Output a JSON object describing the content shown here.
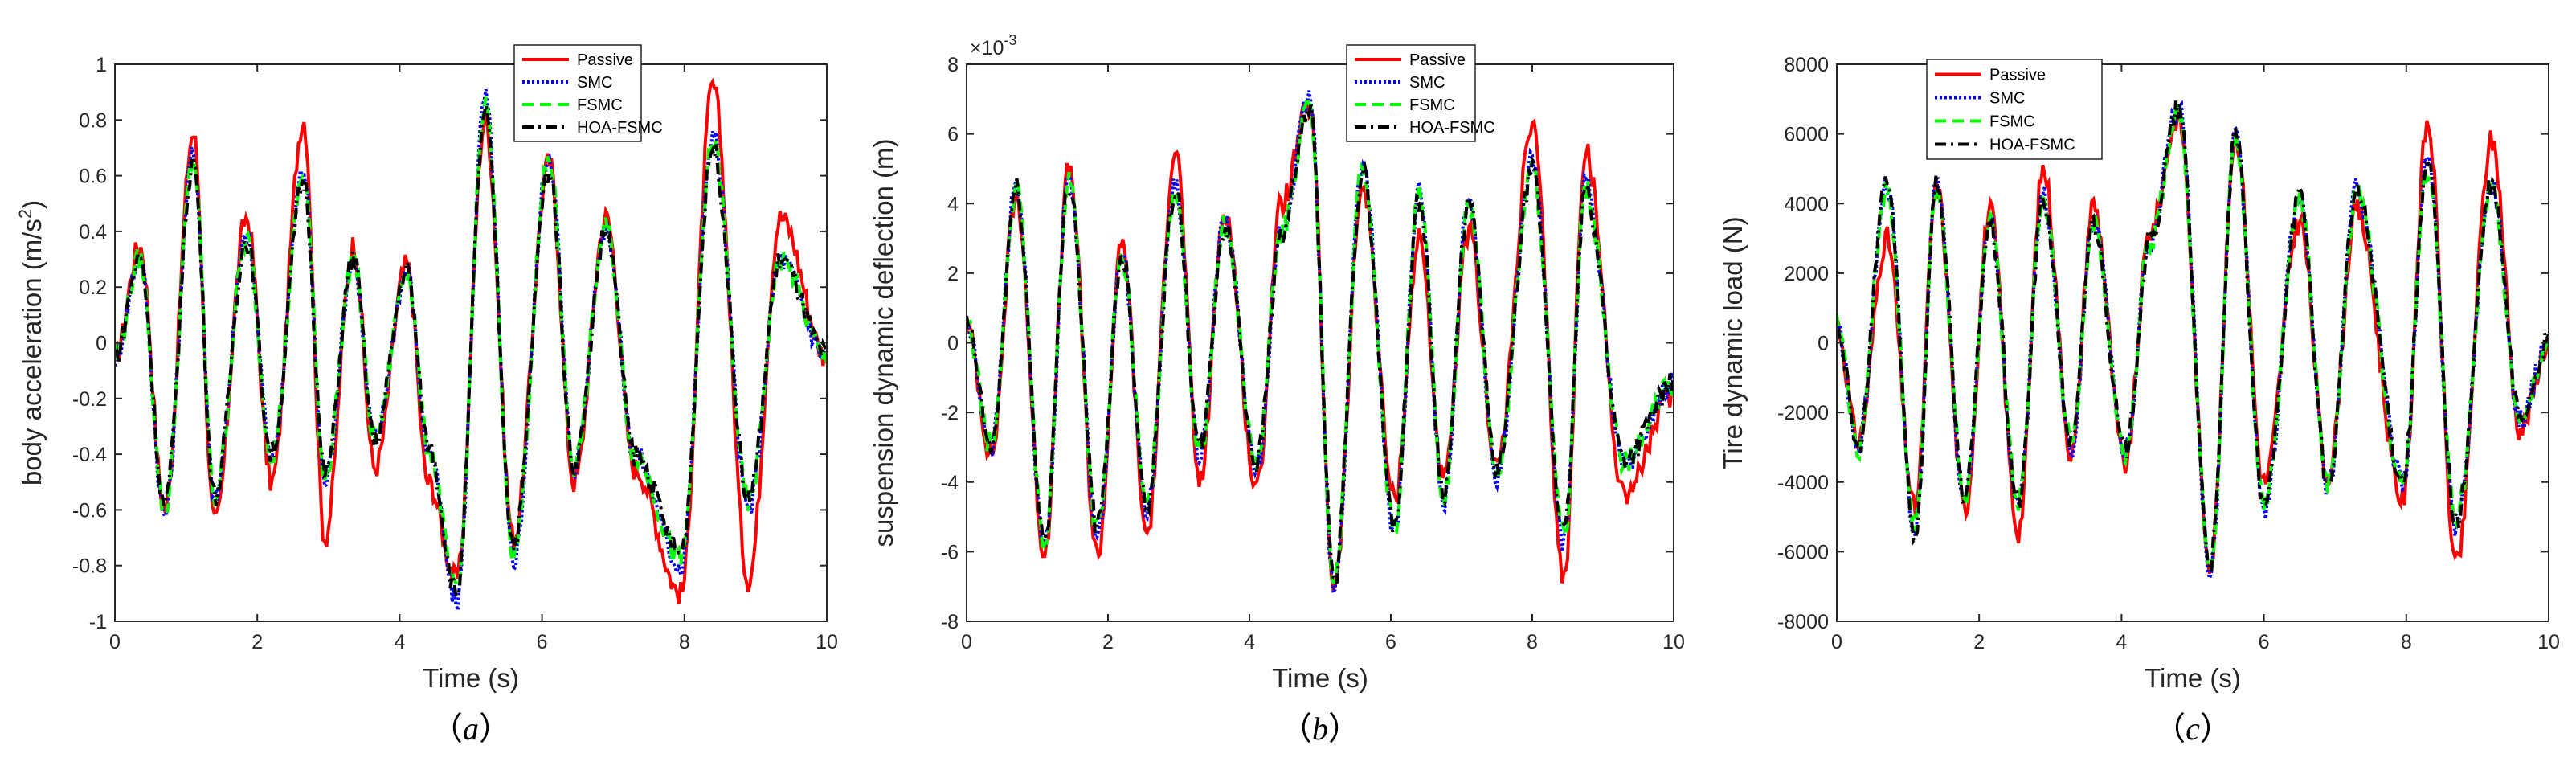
{
  "figure": {
    "legend_labels": [
      "Passive",
      "SMC",
      "FSMC",
      "HOA-FSMC"
    ],
    "colors": {
      "Passive": "#ff0000",
      "SMC": "#0000ff",
      "FSMC": "#00ff00",
      "HOA-FSMC": "#000000"
    }
  },
  "chart_data": [
    {
      "type": "line",
      "panel_label": "a",
      "xlabel": "Time (s)",
      "ylabel": "body acceleration (m/s",
      "ylabel_superscript": "2",
      "ylabel_suffix": ")",
      "xlim": [
        0,
        10
      ],
      "ylim": [
        -1,
        1
      ],
      "xticks": [
        0,
        2,
        4,
        6,
        8,
        10
      ],
      "yticks": [
        -1,
        -0.8,
        -0.6,
        -0.4,
        -0.2,
        0,
        0.2,
        0.4,
        0.6,
        0.8,
        1
      ],
      "ytick_labels": [
        "-1",
        "-0.8",
        "-0.6",
        "-0.4",
        "-0.2",
        "0",
        "0.2",
        "0.4",
        "0.6",
        "0.8",
        "1"
      ],
      "exponent_label": "",
      "legend_position": "top-right",
      "grid": false,
      "series": [
        {
          "name": "Passive",
          "x": [
            0,
            0.35,
            0.7,
            1.1,
            1.4,
            1.85,
            2.2,
            2.65,
            2.95,
            3.35,
            3.65,
            4.1,
            4.4,
            4.8,
            5.2,
            5.6,
            6.1,
            6.45,
            6.9,
            7.3,
            7.95,
            8.4,
            8.9,
            9.35,
            10
          ],
          "y": [
            -0.05,
            0.35,
            -0.6,
            0.75,
            -0.65,
            0.45,
            -0.5,
            0.8,
            -0.7,
            0.35,
            -0.45,
            0.28,
            -0.5,
            -0.85,
            0.8,
            -0.7,
            0.65,
            -0.5,
            0.45,
            -0.45,
            -0.9,
            0.92,
            -0.85,
            0.45,
            -0.05
          ]
        },
        {
          "name": "SMC",
          "x": [
            0,
            0.35,
            0.7,
            1.1,
            1.4,
            1.85,
            2.2,
            2.65,
            2.95,
            3.35,
            3.65,
            4.1,
            4.4,
            4.8,
            5.2,
            5.6,
            6.1,
            6.45,
            6.9,
            7.3,
            7.95,
            8.4,
            8.9,
            9.35,
            10
          ],
          "y": [
            -0.05,
            0.3,
            -0.62,
            0.68,
            -0.55,
            0.38,
            -0.4,
            0.62,
            -0.5,
            0.3,
            -0.35,
            0.26,
            -0.38,
            -0.93,
            0.88,
            -0.78,
            0.68,
            -0.45,
            0.42,
            -0.4,
            -0.8,
            0.75,
            -0.6,
            0.3,
            -0.05
          ]
        },
        {
          "name": "FSMC",
          "x": [
            0,
            0.35,
            0.7,
            1.1,
            1.4,
            1.85,
            2.2,
            2.65,
            2.95,
            3.35,
            3.65,
            4.1,
            4.4,
            4.8,
            5.2,
            5.6,
            6.1,
            6.45,
            6.9,
            7.3,
            7.95,
            8.4,
            8.9,
            9.35,
            10
          ],
          "y": [
            -0.05,
            0.3,
            -0.6,
            0.66,
            -0.55,
            0.37,
            -0.4,
            0.6,
            -0.48,
            0.3,
            -0.35,
            0.26,
            -0.37,
            -0.9,
            0.85,
            -0.75,
            0.66,
            -0.44,
            0.41,
            -0.4,
            -0.78,
            0.72,
            -0.58,
            0.3,
            -0.05
          ]
        },
        {
          "name": "HOA-FSMC",
          "x": [
            0,
            0.35,
            0.7,
            1.1,
            1.4,
            1.85,
            2.2,
            2.65,
            2.95,
            3.35,
            3.65,
            4.1,
            4.4,
            4.8,
            5.2,
            5.6,
            6.1,
            6.45,
            6.9,
            7.3,
            7.95,
            8.4,
            8.9,
            9.35,
            10
          ],
          "y": [
            -0.05,
            0.3,
            -0.58,
            0.65,
            -0.55,
            0.37,
            -0.4,
            0.58,
            -0.47,
            0.3,
            -0.35,
            0.26,
            -0.36,
            -0.9,
            0.82,
            -0.72,
            0.62,
            -0.44,
            0.4,
            -0.4,
            -0.75,
            0.7,
            -0.56,
            0.3,
            -0.05
          ]
        }
      ]
    },
    {
      "type": "line",
      "panel_label": "b",
      "xlabel": "Time (s)",
      "ylabel": "suspension dynamic deflection (m)",
      "ylabel_superscript": "",
      "ylabel_suffix": "",
      "xlim": [
        0,
        10
      ],
      "ylim": [
        -8,
        8
      ],
      "xticks": [
        0,
        2,
        4,
        6,
        8,
        10
      ],
      "yticks": [
        -8,
        -6,
        -4,
        -2,
        0,
        2,
        4,
        6,
        8
      ],
      "ytick_labels": [
        "-8",
        "-6",
        "-4",
        "-2",
        "0",
        "2",
        "4",
        "6",
        "8"
      ],
      "exponent_label": "×10",
      "exponent_power": "-3",
      "legend_position": "top-right",
      "grid": false,
      "series": [
        {
          "name": "Passive",
          "x": [
            0,
            0.35,
            0.7,
            1.1,
            1.45,
            1.85,
            2.2,
            2.55,
            2.95,
            3.3,
            3.65,
            4.1,
            4.45,
            4.85,
            5.2,
            5.6,
            6.05,
            6.4,
            6.75,
            7.1,
            7.5,
            8.0,
            8.45,
            8.75,
            9.3,
            10
          ],
          "y": [
            0.5,
            -3.2,
            4.2,
            -6.0,
            5.0,
            -6.1,
            2.8,
            -5.5,
            5.6,
            -4.0,
            3.8,
            -4.2,
            4.0,
            6.8,
            -7.0,
            4.5,
            -4.5,
            3.0,
            -4.0,
            3.2,
            -3.5,
            6.2,
            -6.8,
            5.5,
            -4.3,
            -1.5
          ]
        },
        {
          "name": "SMC",
          "x": [
            0,
            0.35,
            0.7,
            1.1,
            1.45,
            1.85,
            2.2,
            2.55,
            2.95,
            3.3,
            3.65,
            4.1,
            4.45,
            4.85,
            5.2,
            5.6,
            6.05,
            6.4,
            6.75,
            7.1,
            7.5,
            8.0,
            8.45,
            8.75,
            9.3,
            10
          ],
          "y": [
            0.5,
            -3.0,
            4.5,
            -5.8,
            4.8,
            -5.5,
            2.5,
            -4.8,
            4.6,
            -3.2,
            3.5,
            -3.6,
            3.2,
            7.0,
            -7.1,
            5.2,
            -5.5,
            4.3,
            -4.5,
            4.2,
            -3.8,
            5.2,
            -5.8,
            4.5,
            -3.5,
            -1.2
          ]
        },
        {
          "name": "FSMC",
          "x": [
            0,
            0.35,
            0.7,
            1.1,
            1.45,
            1.85,
            2.2,
            2.55,
            2.95,
            3.3,
            3.65,
            4.1,
            4.45,
            4.85,
            5.2,
            5.6,
            6.05,
            6.4,
            6.75,
            7.1,
            7.5,
            8.0,
            8.45,
            8.75,
            9.3,
            10
          ],
          "y": [
            0.5,
            -3.0,
            4.4,
            -5.7,
            4.7,
            -5.4,
            2.5,
            -4.7,
            4.5,
            -3.2,
            3.4,
            -3.5,
            3.2,
            6.8,
            -6.9,
            5.0,
            -5.3,
            4.2,
            -4.4,
            4.1,
            -3.7,
            5.0,
            -5.6,
            4.4,
            -3.4,
            -1.2
          ]
        },
        {
          "name": "HOA-FSMC",
          "x": [
            0,
            0.35,
            0.7,
            1.1,
            1.45,
            1.85,
            2.2,
            2.55,
            2.95,
            3.3,
            3.65,
            4.1,
            4.45,
            4.85,
            5.2,
            5.6,
            6.05,
            6.4,
            6.75,
            7.1,
            7.5,
            8.0,
            8.45,
            8.75,
            9.3,
            10
          ],
          "y": [
            0.5,
            -3.0,
            4.4,
            -5.6,
            4.6,
            -5.3,
            2.5,
            -4.6,
            4.4,
            -3.1,
            3.3,
            -3.4,
            3.1,
            6.7,
            -6.8,
            4.9,
            -5.2,
            4.1,
            -4.3,
            4.0,
            -3.6,
            4.9,
            -5.5,
            4.3,
            -3.3,
            -1.2
          ]
        }
      ]
    },
    {
      "type": "line",
      "panel_label": "c",
      "xlabel": "Time (s)",
      "ylabel": "Tire dynamic load (N)",
      "ylabel_superscript": "",
      "ylabel_suffix": "",
      "xlim": [
        0,
        10
      ],
      "ylim": [
        -8000,
        8000
      ],
      "xticks": [
        0,
        2,
        4,
        6,
        8,
        10
      ],
      "yticks": [
        -8000,
        -6000,
        -4000,
        -2000,
        0,
        2000,
        4000,
        6000,
        8000
      ],
      "ytick_labels": [
        "-8000",
        "-6000",
        "-4000",
        "-2000",
        "0",
        "2000",
        "4000",
        "6000",
        "8000"
      ],
      "exponent_label": "",
      "legend_position": "top-left",
      "grid": false,
      "series": [
        {
          "name": "Passive",
          "x": [
            0,
            0.3,
            0.7,
            1.1,
            1.4,
            1.8,
            2.15,
            2.55,
            2.9,
            3.3,
            3.6,
            4.05,
            4.4,
            4.8,
            5.25,
            5.6,
            6.0,
            6.5,
            6.9,
            7.3,
            7.95,
            8.3,
            8.7,
            9.2,
            9.6,
            10
          ],
          "y": [
            500,
            -2800,
            3000,
            -4800,
            4500,
            -4800,
            3800,
            -5400,
            5000,
            -3200,
            4000,
            -3500,
            3200,
            6500,
            -6300,
            6000,
            -4000,
            3500,
            -3800,
            3800,
            -4500,
            6300,
            -6400,
            5800,
            -2500,
            0
          ]
        },
        {
          "name": "SMC",
          "x": [
            0,
            0.3,
            0.7,
            1.1,
            1.4,
            1.8,
            2.15,
            2.55,
            2.9,
            3.3,
            3.6,
            4.05,
            4.4,
            4.8,
            5.25,
            5.6,
            6.0,
            6.5,
            6.9,
            7.3,
            7.95,
            8.3,
            8.7,
            9.2,
            9.6,
            10
          ],
          "y": [
            500,
            -3000,
            4600,
            -5400,
            4600,
            -4500,
            3500,
            -4700,
            4200,
            -3000,
            3600,
            -3200,
            3000,
            6800,
            -6500,
            6000,
            -4800,
            4200,
            -4200,
            4400,
            -4000,
            5200,
            -5300,
            4600,
            -2200,
            0
          ]
        },
        {
          "name": "FSMC",
          "x": [
            0,
            0.3,
            0.7,
            1.1,
            1.4,
            1.8,
            2.15,
            2.55,
            2.9,
            3.3,
            3.6,
            4.05,
            4.4,
            4.8,
            5.25,
            5.6,
            6.0,
            6.5,
            6.9,
            7.3,
            7.95,
            8.3,
            8.7,
            9.2,
            9.6,
            10
          ],
          "y": [
            500,
            -3000,
            4500,
            -5300,
            4500,
            -4400,
            3400,
            -4600,
            4100,
            -2900,
            3500,
            -3100,
            2900,
            6600,
            -6300,
            5800,
            -4600,
            4100,
            -4100,
            4300,
            -3900,
            5000,
            -5100,
            4400,
            -2100,
            0
          ]
        },
        {
          "name": "HOA-FSMC",
          "x": [
            0,
            0.3,
            0.7,
            1.1,
            1.4,
            1.8,
            2.15,
            2.55,
            2.9,
            3.3,
            3.6,
            4.05,
            4.4,
            4.8,
            5.25,
            5.6,
            6.0,
            6.5,
            6.9,
            7.3,
            7.95,
            8.3,
            8.7,
            9.2,
            9.6,
            10
          ],
          "y": [
            500,
            -3000,
            4700,
            -5500,
            4600,
            -4400,
            3400,
            -4600,
            4100,
            -2900,
            3500,
            -3100,
            2900,
            6700,
            -6300,
            5900,
            -4700,
            4200,
            -4100,
            4300,
            -3900,
            5100,
            -5200,
            4500,
            -2100,
            0
          ]
        }
      ]
    }
  ]
}
